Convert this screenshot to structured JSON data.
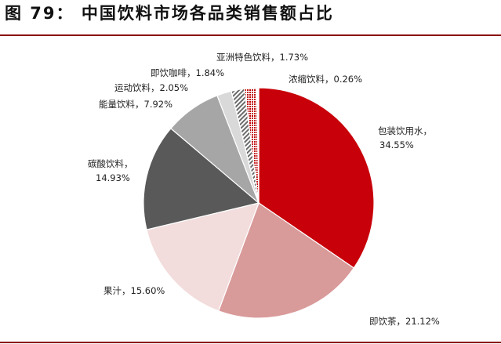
{
  "figure": {
    "title": "图 79： 中国饮料市场各品类销售额占比"
  },
  "chart_data": {
    "type": "pie",
    "start_angle_deg": 0,
    "direction": "clockwise",
    "slices": [
      {
        "name": "包装饮用水",
        "value": 34.55,
        "display": "34.55%",
        "color": "#c8000a",
        "pattern": "solid"
      },
      {
        "name": "即饮茶",
        "value": 21.12,
        "display": "21.12%",
        "color": "#d99a9a",
        "pattern": "solid"
      },
      {
        "name": "果汁",
        "value": 15.6,
        "display": "15.60%",
        "color": "#f2dcdc",
        "pattern": "solid"
      },
      {
        "name": "碳酸饮料",
        "value": 14.93,
        "display": "14.93%",
        "color": "#595959",
        "pattern": "solid"
      },
      {
        "name": "能量饮料",
        "value": 7.92,
        "display": "7.92%",
        "color": "#a6a6a6",
        "pattern": "solid"
      },
      {
        "name": "运动饮料",
        "value": 2.05,
        "display": "2.05%",
        "color": "#d9d9d9",
        "pattern": "solid"
      },
      {
        "name": "即饮咖啡",
        "value": 1.84,
        "display": "1.84%",
        "color": "#7f7f7f",
        "pattern": "hatch"
      },
      {
        "name": "亚洲特色饮料",
        "value": 1.73,
        "display": "1.73%",
        "color": "#c00000",
        "pattern": "dots"
      },
      {
        "name": "浓缩饮料",
        "value": 0.26,
        "display": "0.26%",
        "color": "#ffffff",
        "pattern": "solid"
      }
    ]
  }
}
